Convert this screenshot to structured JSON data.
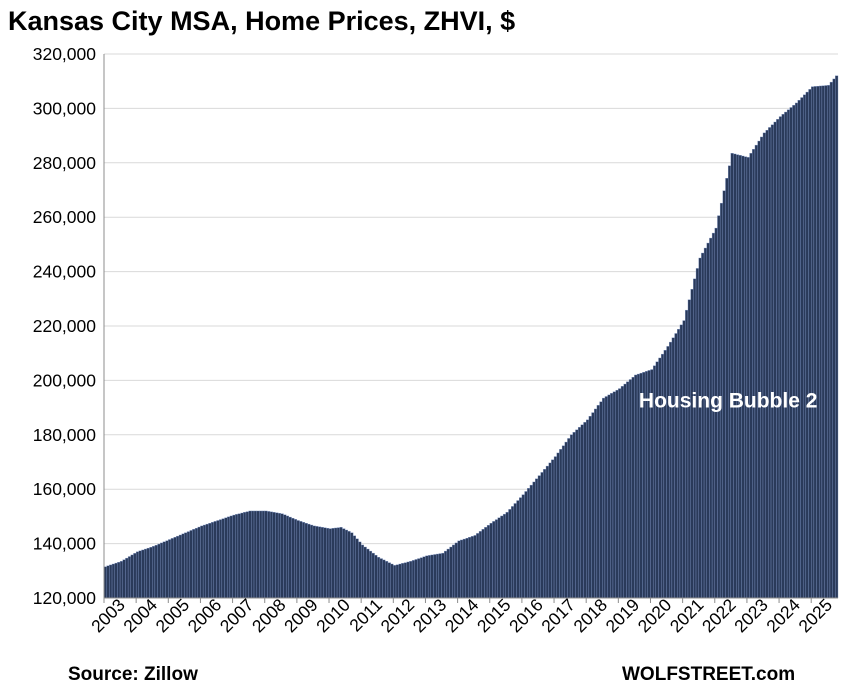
{
  "colors": {
    "bar_fill": "#2a3a5a",
    "bar_edge": "#7f95c4",
    "grid": "#d9d9d9",
    "axis": "#8c8c8c",
    "text": "#000000",
    "annotation": "#ffffff"
  },
  "chart_data": {
    "type": "bar",
    "title": "Kansas City MSA, Home Prices, ZHVI, $",
    "xlabel": "",
    "ylabel": "",
    "ylim": [
      120000,
      320000
    ],
    "yticks": [
      120000,
      140000,
      160000,
      180000,
      200000,
      220000,
      240000,
      260000,
      280000,
      300000,
      320000
    ],
    "ytick_labels": [
      "120,000",
      "140,000",
      "160,000",
      "180,000",
      "200,000",
      "220,000",
      "240,000",
      "260,000",
      "280,000",
      "300,000",
      "320,000"
    ],
    "xtick_labels": [
      "2003",
      "2004",
      "2005",
      "2006",
      "2007",
      "2008",
      "2009",
      "2010",
      "2011",
      "2012",
      "2013",
      "2014",
      "2015",
      "2016",
      "2017",
      "2018",
      "2019",
      "2020",
      "2021",
      "2022",
      "2023",
      "2024",
      "2025"
    ],
    "grid": true,
    "legend": "none",
    "frequency": "monthly",
    "anchors": [
      [
        "2003-01",
        131500
      ],
      [
        "2003-07",
        133500
      ],
      [
        "2004-01",
        137000
      ],
      [
        "2004-07",
        139000
      ],
      [
        "2005-01",
        141500
      ],
      [
        "2005-07",
        144000
      ],
      [
        "2006-01",
        146500
      ],
      [
        "2006-07",
        148500
      ],
      [
        "2007-01",
        150500
      ],
      [
        "2007-07",
        152000
      ],
      [
        "2008-01",
        152000
      ],
      [
        "2008-07",
        151000
      ],
      [
        "2009-01",
        148500
      ],
      [
        "2009-07",
        146500
      ],
      [
        "2010-01",
        145500
      ],
      [
        "2010-05",
        146000
      ],
      [
        "2010-09",
        144000
      ],
      [
        "2011-01",
        139500
      ],
      [
        "2011-07",
        135000
      ],
      [
        "2012-01",
        132000
      ],
      [
        "2012-07",
        133500
      ],
      [
        "2013-01",
        135500
      ],
      [
        "2013-07",
        136500
      ],
      [
        "2014-01",
        141000
      ],
      [
        "2014-07",
        143000
      ],
      [
        "2015-01",
        147500
      ],
      [
        "2015-07",
        151500
      ],
      [
        "2016-01",
        158000
      ],
      [
        "2016-07",
        165000
      ],
      [
        "2017-01",
        172000
      ],
      [
        "2017-07",
        180000
      ],
      [
        "2018-01",
        185500
      ],
      [
        "2018-07",
        193500
      ],
      [
        "2019-01",
        197000
      ],
      [
        "2019-07",
        202000
      ],
      [
        "2020-01",
        204000
      ],
      [
        "2020-07",
        212500
      ],
      [
        "2021-01",
        222000
      ],
      [
        "2021-07",
        245000
      ],
      [
        "2022-01",
        256000
      ],
      [
        "2022-07",
        283500
      ],
      [
        "2023-01",
        282000
      ],
      [
        "2023-07",
        291000
      ],
      [
        "2024-01",
        297000
      ],
      [
        "2024-07",
        302000
      ],
      [
        "2025-01",
        308000
      ],
      [
        "2025-07",
        308500
      ],
      [
        "2025-10",
        312000
      ]
    ],
    "annotations": [
      {
        "text": "Housing Bubble 2",
        "x": "2022-06",
        "y": 193000
      }
    ]
  },
  "footer": {
    "source": "Source: Zillow",
    "brand": "WOLFSTREET.com"
  }
}
